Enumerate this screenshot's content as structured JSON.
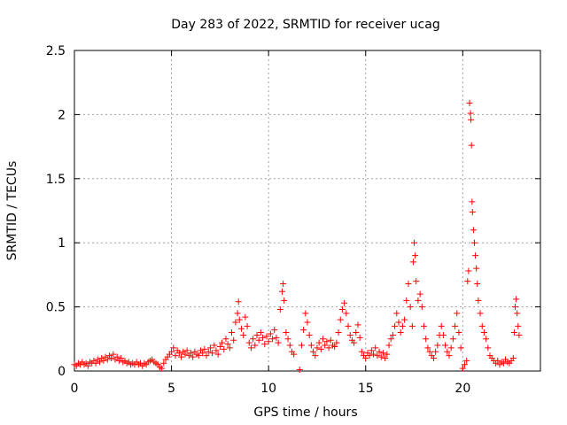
{
  "chart_data": {
    "type": "scatter",
    "title": "Day 283 of 2022, SRMTID for receiver ucag",
    "xlabel": "GPS time / hours",
    "ylabel": "SRMTID / TECUs",
    "xlim": [
      0,
      24
    ],
    "ylim": [
      0,
      2.5
    ],
    "xticks": [
      0,
      5,
      10,
      15,
      20
    ],
    "xtick_labels": [
      "0",
      "5",
      "10",
      "15",
      "20"
    ],
    "yticks": [
      0,
      0.5,
      1,
      1.5,
      2,
      2.5
    ],
    "ytick_labels": [
      "0",
      "0.5",
      "1",
      "1.5",
      "2",
      "2.5"
    ],
    "grid": true,
    "marker": "+",
    "color": "#ff0000",
    "series": [
      {
        "name": "SRMTID",
        "points": [
          [
            0.0,
            0.05
          ],
          [
            0.1,
            0.04
          ],
          [
            0.2,
            0.06
          ],
          [
            0.3,
            0.05
          ],
          [
            0.4,
            0.07
          ],
          [
            0.5,
            0.05
          ],
          [
            0.6,
            0.06
          ],
          [
            0.7,
            0.04
          ],
          [
            0.8,
            0.07
          ],
          [
            0.9,
            0.06
          ],
          [
            1.0,
            0.08
          ],
          [
            1.1,
            0.06
          ],
          [
            1.2,
            0.09
          ],
          [
            1.3,
            0.07
          ],
          [
            1.4,
            0.1
          ],
          [
            1.5,
            0.08
          ],
          [
            1.6,
            0.11
          ],
          [
            1.7,
            0.09
          ],
          [
            1.8,
            0.12
          ],
          [
            1.9,
            0.1
          ],
          [
            2.0,
            0.13
          ],
          [
            2.1,
            0.09
          ],
          [
            2.2,
            0.11
          ],
          [
            2.3,
            0.08
          ],
          [
            2.4,
            0.1
          ],
          [
            2.5,
            0.07
          ],
          [
            2.6,
            0.08
          ],
          [
            2.7,
            0.06
          ],
          [
            2.8,
            0.07
          ],
          [
            2.9,
            0.05
          ],
          [
            3.0,
            0.06
          ],
          [
            3.1,
            0.05
          ],
          [
            3.2,
            0.07
          ],
          [
            3.3,
            0.05
          ],
          [
            3.4,
            0.06
          ],
          [
            3.5,
            0.04
          ],
          [
            3.6,
            0.06
          ],
          [
            3.7,
            0.05
          ],
          [
            3.8,
            0.07
          ],
          [
            3.9,
            0.08
          ],
          [
            4.0,
            0.09
          ],
          [
            4.1,
            0.07
          ],
          [
            4.2,
            0.06
          ],
          [
            4.3,
            0.05
          ],
          [
            4.4,
            0.03
          ],
          [
            4.5,
            0.02
          ],
          [
            4.6,
            0.06
          ],
          [
            4.7,
            0.09
          ],
          [
            4.8,
            0.11
          ],
          [
            4.9,
            0.13
          ],
          [
            5.0,
            0.15
          ],
          [
            5.1,
            0.18
          ],
          [
            5.2,
            0.12
          ],
          [
            5.3,
            0.16
          ],
          [
            5.4,
            0.14
          ],
          [
            5.5,
            0.11
          ],
          [
            5.6,
            0.15
          ],
          [
            5.7,
            0.13
          ],
          [
            5.8,
            0.16
          ],
          [
            5.9,
            0.12
          ],
          [
            6.0,
            0.14
          ],
          [
            6.1,
            0.11
          ],
          [
            6.2,
            0.15
          ],
          [
            6.3,
            0.13
          ],
          [
            6.4,
            0.12
          ],
          [
            6.5,
            0.16
          ],
          [
            6.6,
            0.14
          ],
          [
            6.7,
            0.17
          ],
          [
            6.8,
            0.12
          ],
          [
            6.9,
            0.15
          ],
          [
            7.0,
            0.18
          ],
          [
            7.1,
            0.14
          ],
          [
            7.2,
            0.2
          ],
          [
            7.3,
            0.16
          ],
          [
            7.4,
            0.13
          ],
          [
            7.5,
            0.19
          ],
          [
            7.6,
            0.22
          ],
          [
            7.7,
            0.17
          ],
          [
            7.8,
            0.25
          ],
          [
            7.9,
            0.21
          ],
          [
            8.0,
            0.18
          ],
          [
            8.1,
            0.3
          ],
          [
            8.2,
            0.24
          ],
          [
            8.3,
            0.38
          ],
          [
            8.4,
            0.45
          ],
          [
            8.45,
            0.54
          ],
          [
            8.5,
            0.4
          ],
          [
            8.6,
            0.33
          ],
          [
            8.7,
            0.28
          ],
          [
            8.8,
            0.42
          ],
          [
            8.9,
            0.35
          ],
          [
            9.0,
            0.22
          ],
          [
            9.1,
            0.18
          ],
          [
            9.2,
            0.25
          ],
          [
            9.3,
            0.2
          ],
          [
            9.4,
            0.28
          ],
          [
            9.5,
            0.24
          ],
          [
            9.6,
            0.3
          ],
          [
            9.7,
            0.26
          ],
          [
            9.8,
            0.21
          ],
          [
            9.9,
            0.27
          ],
          [
            10.0,
            0.23
          ],
          [
            10.1,
            0.29
          ],
          [
            10.2,
            0.25
          ],
          [
            10.3,
            0.32
          ],
          [
            10.4,
            0.26
          ],
          [
            10.5,
            0.22
          ],
          [
            10.6,
            0.48
          ],
          [
            10.7,
            0.62
          ],
          [
            10.75,
            0.68
          ],
          [
            10.8,
            0.55
          ],
          [
            10.9,
            0.3
          ],
          [
            11.0,
            0.25
          ],
          [
            11.1,
            0.2
          ],
          [
            11.2,
            0.15
          ],
          [
            11.3,
            0.13
          ],
          [
            11.6,
            0.01
          ],
          [
            11.7,
            0.2
          ],
          [
            11.8,
            0.32
          ],
          [
            11.9,
            0.45
          ],
          [
            12.0,
            0.38
          ],
          [
            12.1,
            0.28
          ],
          [
            12.2,
            0.2
          ],
          [
            12.3,
            0.15
          ],
          [
            12.4,
            0.12
          ],
          [
            12.5,
            0.18
          ],
          [
            12.6,
            0.22
          ],
          [
            12.7,
            0.17
          ],
          [
            12.8,
            0.25
          ],
          [
            12.9,
            0.2
          ],
          [
            13.0,
            0.23
          ],
          [
            13.1,
            0.18
          ],
          [
            13.2,
            0.24
          ],
          [
            13.3,
            0.2
          ],
          [
            13.4,
            0.19
          ],
          [
            13.5,
            0.22
          ],
          [
            13.6,
            0.3
          ],
          [
            13.7,
            0.4
          ],
          [
            13.8,
            0.48
          ],
          [
            13.9,
            0.53
          ],
          [
            14.0,
            0.45
          ],
          [
            14.1,
            0.35
          ],
          [
            14.2,
            0.28
          ],
          [
            14.3,
            0.24
          ],
          [
            14.4,
            0.22
          ],
          [
            14.5,
            0.3
          ],
          [
            14.6,
            0.36
          ],
          [
            14.7,
            0.26
          ],
          [
            14.8,
            0.15
          ],
          [
            14.9,
            0.12
          ],
          [
            15.0,
            0.1
          ],
          [
            15.1,
            0.14
          ],
          [
            15.2,
            0.12
          ],
          [
            15.3,
            0.16
          ],
          [
            15.4,
            0.13
          ],
          [
            15.5,
            0.18
          ],
          [
            15.6,
            0.12
          ],
          [
            15.7,
            0.15
          ],
          [
            15.8,
            0.11
          ],
          [
            15.9,
            0.14
          ],
          [
            16.0,
            0.1
          ],
          [
            16.1,
            0.13
          ],
          [
            16.2,
            0.2
          ],
          [
            16.3,
            0.25
          ],
          [
            16.4,
            0.28
          ],
          [
            16.5,
            0.35
          ],
          [
            16.6,
            0.45
          ],
          [
            16.7,
            0.38
          ],
          [
            16.8,
            0.3
          ],
          [
            16.9,
            0.35
          ],
          [
            17.0,
            0.4
          ],
          [
            17.1,
            0.55
          ],
          [
            17.2,
            0.68
          ],
          [
            17.3,
            0.5
          ],
          [
            17.4,
            0.35
          ],
          [
            17.45,
            0.85
          ],
          [
            17.5,
            1.0
          ],
          [
            17.55,
            0.9
          ],
          [
            17.6,
            0.7
          ],
          [
            17.7,
            0.55
          ],
          [
            17.8,
            0.6
          ],
          [
            17.9,
            0.5
          ],
          [
            18.0,
            0.35
          ],
          [
            18.1,
            0.25
          ],
          [
            18.2,
            0.18
          ],
          [
            18.3,
            0.15
          ],
          [
            18.4,
            0.12
          ],
          [
            18.5,
            0.1
          ],
          [
            18.6,
            0.15
          ],
          [
            18.7,
            0.2
          ],
          [
            18.8,
            0.28
          ],
          [
            18.9,
            0.35
          ],
          [
            19.0,
            0.28
          ],
          [
            19.1,
            0.2
          ],
          [
            19.2,
            0.15
          ],
          [
            19.3,
            0.12
          ],
          [
            19.4,
            0.18
          ],
          [
            19.5,
            0.25
          ],
          [
            19.6,
            0.35
          ],
          [
            19.7,
            0.45
          ],
          [
            19.8,
            0.3
          ],
          [
            19.9,
            0.18
          ],
          [
            20.0,
            0.02
          ],
          [
            20.1,
            0.05
          ],
          [
            20.2,
            0.08
          ],
          [
            20.25,
            0.7
          ],
          [
            20.3,
            0.78
          ],
          [
            20.35,
            2.09
          ],
          [
            20.4,
            2.01
          ],
          [
            20.42,
            1.96
          ],
          [
            20.45,
            1.76
          ],
          [
            20.48,
            1.32
          ],
          [
            20.5,
            1.24
          ],
          [
            20.55,
            1.1
          ],
          [
            20.6,
            1.0
          ],
          [
            20.65,
            0.9
          ],
          [
            20.7,
            0.8
          ],
          [
            20.75,
            0.68
          ],
          [
            20.8,
            0.55
          ],
          [
            20.9,
            0.45
          ],
          [
            21.0,
            0.35
          ],
          [
            21.1,
            0.3
          ],
          [
            21.2,
            0.25
          ],
          [
            21.3,
            0.18
          ],
          [
            21.4,
            0.12
          ],
          [
            21.5,
            0.1
          ],
          [
            21.6,
            0.08
          ],
          [
            21.7,
            0.06
          ],
          [
            21.8,
            0.08
          ],
          [
            21.9,
            0.05
          ],
          [
            22.0,
            0.07
          ],
          [
            22.1,
            0.06
          ],
          [
            22.2,
            0.09
          ],
          [
            22.3,
            0.07
          ],
          [
            22.4,
            0.06
          ],
          [
            22.5,
            0.08
          ],
          [
            22.6,
            0.1
          ],
          [
            22.65,
            0.3
          ],
          [
            22.7,
            0.5
          ],
          [
            22.75,
            0.56
          ],
          [
            22.8,
            0.45
          ],
          [
            22.85,
            0.35
          ],
          [
            22.9,
            0.28
          ]
        ]
      }
    ]
  }
}
